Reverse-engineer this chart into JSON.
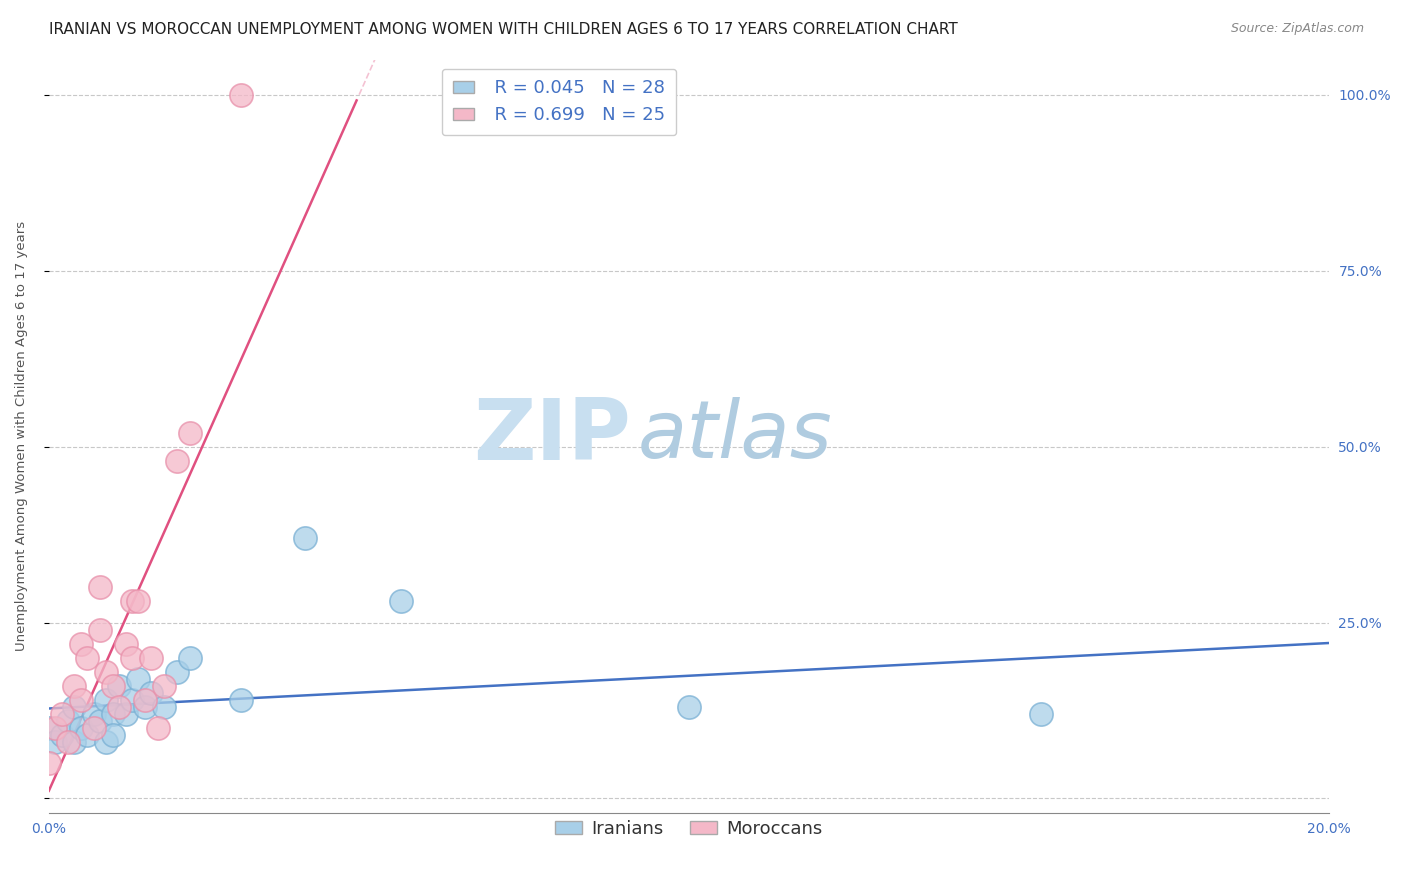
{
  "title": "IRANIAN VS MOROCCAN UNEMPLOYMENT AMONG WOMEN WITH CHILDREN AGES 6 TO 17 YEARS CORRELATION CHART",
  "source": "Source: ZipAtlas.com",
  "ylabel": "Unemployment Among Women with Children Ages 6 to 17 years",
  "xlim": [
    0.0,
    0.2
  ],
  "ylim": [
    -0.02,
    1.05
  ],
  "xticks": [
    0.0,
    0.2
  ],
  "xtick_labels": [
    "0.0%",
    "20.0%"
  ],
  "ytick_positions": [
    0.0,
    0.25,
    0.5,
    0.75,
    1.0
  ],
  "ytick_labels": [
    "",
    "25.0%",
    "50.0%",
    "75.0%",
    "100.0%"
  ],
  "iranian_R": 0.045,
  "iranian_N": 28,
  "moroccan_R": 0.699,
  "moroccan_N": 25,
  "iranian_color": "#a8cfe8",
  "moroccan_color": "#f4b8c8",
  "iranian_edge_color": "#7ab0d4",
  "moroccan_edge_color": "#e890aa",
  "iranian_line_color": "#4472c4",
  "moroccan_line_color": "#e05080",
  "background_color": "#ffffff",
  "grid_color": "#c8c8c8",
  "watermark_zip_color": "#c8dff0",
  "watermark_atlas_color": "#b0cce0",
  "title_fontsize": 11,
  "axis_label_fontsize": 9.5,
  "tick_fontsize": 10,
  "legend_fontsize": 13,
  "iranian_x": [
    0.0,
    0.001,
    0.002,
    0.003,
    0.004,
    0.004,
    0.005,
    0.006,
    0.007,
    0.008,
    0.009,
    0.009,
    0.01,
    0.01,
    0.011,
    0.012,
    0.013,
    0.014,
    0.015,
    0.016,
    0.018,
    0.02,
    0.022,
    0.03,
    0.04,
    0.055,
    0.1,
    0.155
  ],
  "iranian_y": [
    0.1,
    0.08,
    0.09,
    0.11,
    0.08,
    0.13,
    0.1,
    0.09,
    0.12,
    0.11,
    0.08,
    0.14,
    0.12,
    0.09,
    0.16,
    0.12,
    0.14,
    0.17,
    0.13,
    0.15,
    0.13,
    0.18,
    0.2,
    0.14,
    0.37,
    0.28,
    0.13,
    0.12
  ],
  "moroccan_x": [
    0.0,
    0.001,
    0.002,
    0.003,
    0.004,
    0.005,
    0.005,
    0.006,
    0.007,
    0.008,
    0.008,
    0.009,
    0.01,
    0.011,
    0.012,
    0.013,
    0.013,
    0.014,
    0.015,
    0.016,
    0.017,
    0.018,
    0.02,
    0.022,
    0.03
  ],
  "moroccan_y": [
    0.05,
    0.1,
    0.12,
    0.08,
    0.16,
    0.22,
    0.14,
    0.2,
    0.1,
    0.24,
    0.3,
    0.18,
    0.16,
    0.13,
    0.22,
    0.2,
    0.28,
    0.28,
    0.14,
    0.2,
    0.1,
    0.16,
    0.48,
    0.52,
    1.0
  ]
}
